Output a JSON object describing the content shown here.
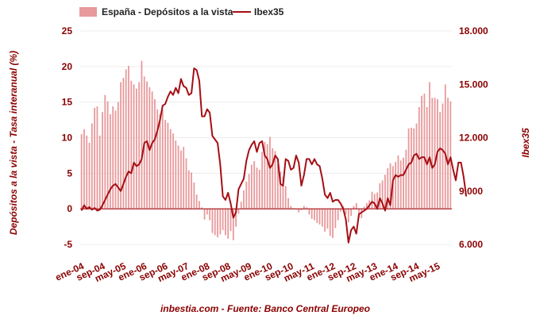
{
  "chart_data": {
    "type": "bar+line",
    "legend": {
      "bars_label": "España - Depósitos a la vista",
      "line_label": "Ibex35",
      "placement": "top-center"
    },
    "left_axis": {
      "label": "Depósitos a la vista - Tasa interanual (%)",
      "ylim": [
        -5,
        25
      ],
      "ticks": [
        "-5",
        "0",
        "5",
        "10",
        "15",
        "20",
        "25"
      ]
    },
    "right_axis": {
      "label": "Ibex35",
      "ylim": [
        6000,
        18000
      ],
      "ticks": [
        "6.000",
        "9.000",
        "12.000",
        "15.000",
        "18.000"
      ]
    },
    "x_ticks": [
      "ene-04",
      "sep-04",
      "may-05",
      "ene-06",
      "sep-06",
      "may-07",
      "ene-08",
      "sep-08",
      "may-09",
      "ene-10",
      "sep-10",
      "may-11",
      "ene-12",
      "sep-12",
      "may-13",
      "ene-14",
      "sep-14",
      "may-15"
    ],
    "x_start": "2004-01",
    "grid": true,
    "colors": {
      "bars": "#e8999b",
      "line": "#a50f15",
      "text": "#8b0000",
      "grid": "#ececec"
    },
    "series": [
      {
        "name": "España - Depósitos a la vista",
        "kind": "bar",
        "values": [
          10.5,
          11.2,
          10.3,
          9.3,
          12,
          14.2,
          14.4,
          10.3,
          13.6,
          16,
          15.1,
          13.3,
          14.4,
          13.8,
          15,
          17.8,
          18.4,
          19.6,
          20.1,
          18,
          17.5,
          16.9,
          17.8,
          20.8,
          18.6,
          17.9,
          17.1,
          16.5,
          15.4,
          14,
          13.3,
          13.9,
          12.5,
          12.1,
          11.2,
          10.6,
          9.6,
          8.9,
          8.2,
          8.7,
          7.1,
          5.4,
          5.1,
          3.7,
          2,
          1.1,
          0.2,
          -1.5,
          -0.8,
          -1.6,
          -3.4,
          -3.7,
          -4,
          -3.6,
          -3,
          -3.7,
          -4.2,
          -3.1,
          -4.4,
          -2.5,
          -0.7,
          1,
          2.6,
          3.8,
          4.9,
          6.2,
          6.7,
          5.8,
          5.5,
          8,
          9.4,
          9.1,
          10.1,
          8.5,
          8.1,
          6.3,
          5.2,
          4.5,
          3.2,
          1.5,
          0.4,
          0.1,
          -0.1,
          -0.5,
          -0.2,
          0.4,
          0.2,
          -0.8,
          -1.4,
          -1.6,
          -2,
          -2.2,
          -2.5,
          -3.2,
          -2.8,
          -3.8,
          -4.1,
          -2.7,
          -1.6,
          -0.4,
          0.4,
          -0.8,
          -1.9,
          -1,
          0.4,
          0.8,
          -1.3,
          -1.3,
          0.3,
          0.8,
          1.2,
          2.4,
          2.1,
          2.3,
          3.6,
          4,
          4.8,
          5.7,
          6.4,
          6,
          6.6,
          7.5,
          6.8,
          7.2,
          8.3,
          11.3,
          11.4,
          11.3,
          12,
          14.3,
          15.9,
          16.2,
          14.3,
          17.8,
          15.6,
          15.6,
          15.4,
          13.6,
          14.8,
          17.5,
          15.6,
          15.1
        ]
      },
      {
        "name": "Ibex35",
        "kind": "line",
        "values": [
          7900,
          8200,
          8000,
          8100,
          7950,
          8050,
          7900,
          7950,
          8200,
          8500,
          8800,
          9100,
          9300,
          9400,
          9200,
          9000,
          9400,
          9800,
          10100,
          10000,
          10600,
          10400,
          10500,
          10800,
          11700,
          11800,
          11300,
          11700,
          11900,
          12400,
          13000,
          13800,
          13900,
          14300,
          14600,
          14400,
          14800,
          14500,
          15300,
          14900,
          14800,
          14400,
          14500,
          15900,
          15800,
          15200,
          13200,
          13200,
          13600,
          13400,
          12100,
          11900,
          11700,
          10500,
          8700,
          8500,
          8900,
          8300,
          7500,
          7800,
          9100,
          9400,
          9700,
          10700,
          11300,
          11600,
          11800,
          11200,
          11700,
          11800,
          11000,
          10800,
          10300,
          10500,
          11000,
          10800,
          9400,
          9300,
          10800,
          10700,
          10200,
          10300,
          11000,
          10600,
          9300,
          9900,
          10800,
          10800,
          10500,
          10800,
          10500,
          10400,
          9700,
          8800,
          8600,
          8900,
          8400,
          8500,
          8500,
          8300,
          8000,
          7400,
          6100,
          6800,
          7000,
          6600,
          7700,
          7800,
          7900,
          8000,
          8200,
          8400,
          8300,
          8000,
          8600,
          8300,
          7900,
          8600,
          8200,
          9600,
          9900,
          9800,
          9900,
          9900,
          10200,
          10500,
          10600,
          11000,
          11100,
          10800,
          10900,
          10900,
          10500,
          10900,
          10300,
          10500,
          11200,
          11400,
          11300,
          11100,
          10500,
          10900,
          10200,
          9600,
          10600,
          10600,
          9800,
          8700
        ]
      }
    ],
    "source": "inbestia.com - Fuente: Banco Central Europeo"
  }
}
